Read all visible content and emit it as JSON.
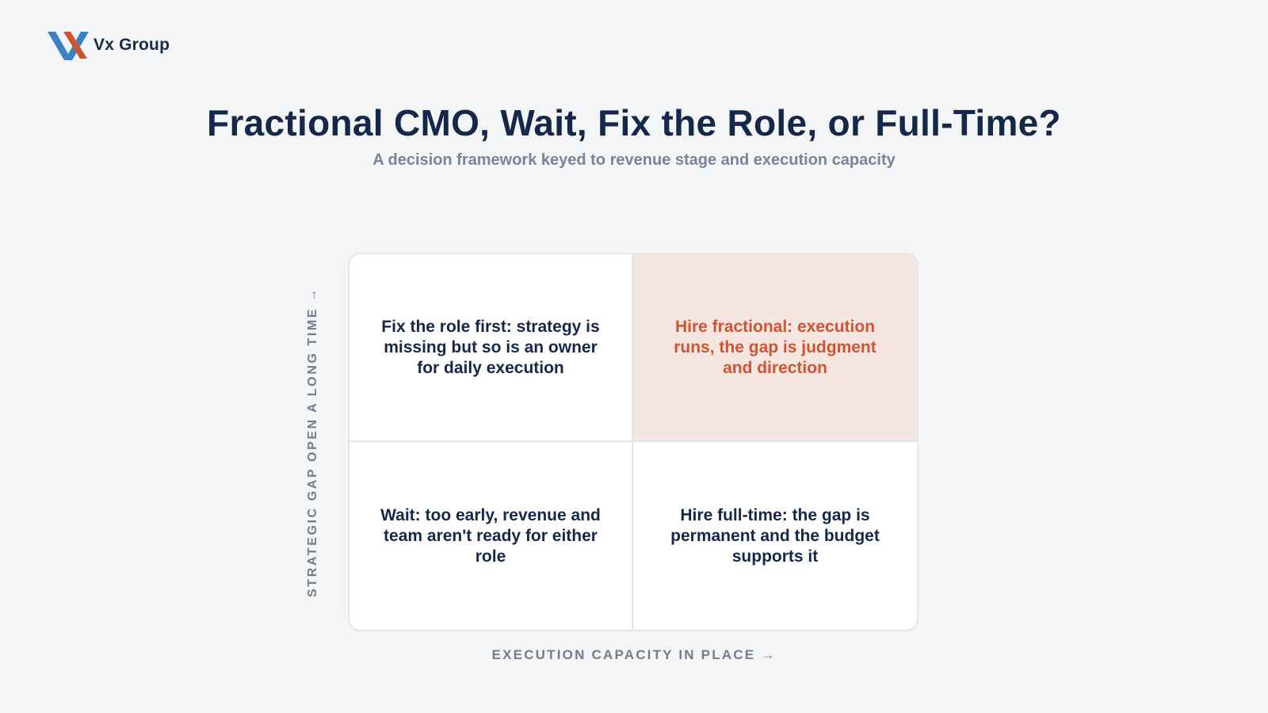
{
  "brand": {
    "name": "Vx Group",
    "logo_icon": "vx-chevron-logo",
    "colors": {
      "blue": "#3a82c4",
      "red": "#d2532f",
      "navy": "#1a2a47"
    }
  },
  "header": {
    "title": "Fractional CMO, Wait, Fix the Role, or Full-Time?",
    "subtitle": "A decision framework keyed to revenue stage and execution capacity"
  },
  "matrix": {
    "y_axis_label": "STRATEGIC GAP OPEN A LONG TIME →",
    "x_axis_label": "EXECUTION CAPACITY IN PLACE →",
    "highlight_color": "#f5e6e2",
    "highlight_text_color": "#d2532f",
    "quadrants": {
      "top_left": "Fix the role first: strategy is missing but so is an owner for daily execution",
      "top_right": "Hire fractional: execution runs, the gap is judgment and direction",
      "bottom_left": "Wait: too early, revenue and team aren't ready for either role",
      "bottom_right": "Hire full-time: the gap is permanent and the budget supports it"
    }
  }
}
